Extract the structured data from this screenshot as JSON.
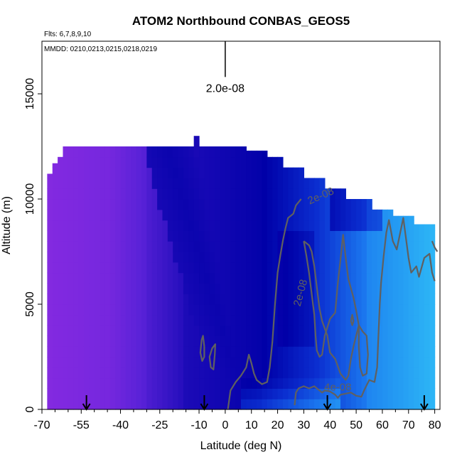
{
  "chart_data": {
    "type": "heatmap",
    "title": "ATOM2 Northbound CONBAS_GEOS5",
    "flights_text": "Flts: 6,7,8,9,10",
    "dates_text": "MMDD: 0210,0213,0215,0218,0219",
    "xlabel": "Latitude (deg N)",
    "ylabel": "Altitude (m)",
    "xlim": [
      -70,
      82
    ],
    "ylim": [
      0,
      17500
    ],
    "x_ticks": [
      -70,
      -55,
      -40,
      -25,
      -10,
      0,
      10,
      20,
      30,
      40,
      50,
      60,
      70,
      80
    ],
    "x_tick_labels": [
      "-70",
      "-55",
      "-40",
      "-25",
      "-10",
      "0",
      "10",
      "20",
      "30",
      "40",
      "50",
      "60",
      "70",
      "80"
    ],
    "y_ticks": [
      0,
      5000,
      10000,
      15000
    ],
    "y_tick_labels": [
      "0",
      "5000",
      "10000",
      "15000"
    ],
    "scale_bar": {
      "label": "2.0e-08",
      "x": 0,
      "y_range": [
        15800,
        17500
      ]
    },
    "flight_arrows_lat": [
      -53,
      -8,
      39,
      76
    ],
    "contour_labels": [
      {
        "text": "2e-08",
        "x": 37,
        "y": 10000
      },
      {
        "text": "2e-08",
        "x": 30,
        "y": 5500
      },
      {
        "text": "4e-08",
        "x": 43,
        "y": 900
      }
    ],
    "grid": false,
    "colors": {
      "low": "#8a2be2",
      "mid_low": "#4b1fd6",
      "mid": "#0000a8",
      "mid_high": "#1a5ae6",
      "high": "#2fb8f5",
      "contour": "#606060"
    }
  }
}
